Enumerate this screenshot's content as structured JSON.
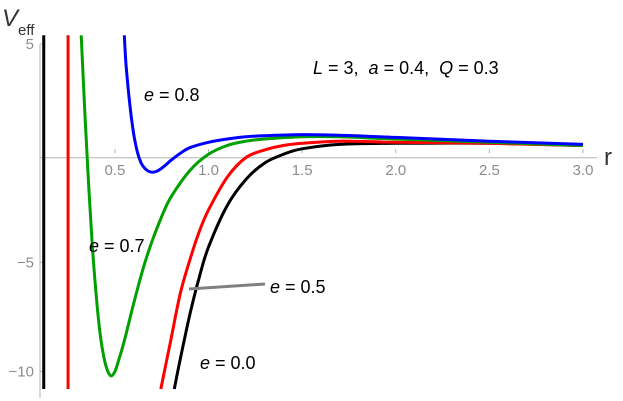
{
  "chart_data": {
    "type": "line",
    "title": "",
    "xlabel": "r",
    "ylabel_main": "V",
    "ylabel_sub": "eff",
    "xlim": [
      0.1,
      3.0
    ],
    "ylim": [
      -10.8,
      5.4
    ],
    "x_ticks": [
      {
        "value": 0.5,
        "label": "0.5"
      },
      {
        "value": 1.0,
        "label": "1.0"
      },
      {
        "value": 1.5,
        "label": "1.5"
      },
      {
        "value": 2.0,
        "label": "2.0"
      },
      {
        "value": 2.5,
        "label": "2.5"
      },
      {
        "value": 3.0,
        "label": "3.0"
      }
    ],
    "y_ticks": [
      {
        "value": 5,
        "label": "5"
      },
      {
        "value": -5,
        "label": "−5"
      },
      {
        "value": -10,
        "label": "−10"
      }
    ],
    "parameters": {
      "L": "3",
      "a": "0.4",
      "Q": "0.3"
    },
    "parameters_label": {
      "L_sym": "L",
      "L_val": " = 3,  ",
      "a_sym": "a",
      "a_val": " = 0.4,  ",
      "Q_sym": "Q",
      "Q_val": " = 0.3"
    },
    "series": [
      {
        "name": "e = 0.0",
        "sym": "e",
        "eq": " = 0.0",
        "color": "#000000",
        "asymptote_x": 0.12,
        "x": [
          0.817,
          0.85,
          0.9,
          0.95,
          1.0,
          1.1,
          1.2,
          1.3,
          1.4,
          1.5,
          1.7,
          2.0,
          2.5,
          3.0
        ],
        "y": [
          -10.8,
          -9.4,
          -7.4,
          -5.7,
          -4.3,
          -2.4,
          -1.2,
          -0.45,
          -0.05,
          0.2,
          0.4,
          0.45,
          0.45,
          0.35
        ]
      },
      {
        "name": "e = 0.5",
        "sym": "e",
        "eq": " = 0.5",
        "color": "#ff0000",
        "asymptote_x": 0.25,
        "x": [
          0.745,
          0.8,
          0.85,
          0.9,
          0.95,
          1.0,
          1.1,
          1.2,
          1.3,
          1.4,
          1.5,
          1.7,
          2.0,
          2.5,
          3.0
        ],
        "y": [
          -10.8,
          -8.5,
          -6.4,
          -4.9,
          -3.6,
          -2.6,
          -1.1,
          -0.2,
          0.15,
          0.35,
          0.45,
          0.55,
          0.5,
          0.45,
          0.35
        ]
      },
      {
        "name": "e = 0.7",
        "sym": "e",
        "eq": " = 0.7",
        "color": "#00a000",
        "x": [
          0.32,
          0.34,
          0.36,
          0.38,
          0.4,
          0.42,
          0.44,
          0.46,
          0.48,
          0.5,
          0.52,
          0.55,
          0.6,
          0.65,
          0.7,
          0.75,
          0.8,
          0.9,
          1.0,
          1.1,
          1.2,
          1.3,
          1.5,
          1.7,
          2.0,
          2.5,
          3.0
        ],
        "y": [
          5.4,
          1.8,
          -1.5,
          -4.3,
          -6.5,
          -8.2,
          -9.3,
          -9.95,
          -10.2,
          -10.0,
          -9.5,
          -8.6,
          -6.9,
          -5.3,
          -4.0,
          -2.9,
          -2.0,
          -0.8,
          -0.05,
          0.35,
          0.55,
          0.65,
          0.75,
          0.75,
          0.65,
          0.5,
          0.35
        ]
      },
      {
        "name": "e = 0.8",
        "sym": "e",
        "eq": " = 0.8",
        "color": "#0000ff",
        "x": [
          0.55,
          0.56,
          0.58,
          0.6,
          0.62,
          0.64,
          0.66,
          0.68,
          0.7,
          0.72,
          0.74,
          0.77,
          0.8,
          0.85,
          0.9,
          1.0,
          1.1,
          1.2,
          1.3,
          1.5,
          1.7,
          2.0,
          2.5,
          3.0
        ],
        "y": [
          5.4,
          4.0,
          2.2,
          0.9,
          0.05,
          -0.45,
          -0.7,
          -0.83,
          -0.87,
          -0.84,
          -0.75,
          -0.55,
          -0.32,
          0.0,
          0.25,
          0.5,
          0.65,
          0.75,
          0.8,
          0.85,
          0.82,
          0.72,
          0.55,
          0.4
        ]
      }
    ],
    "annotations": [
      {
        "series": "e = 0.8",
        "sym": "e",
        "eq": " = 0.8"
      },
      {
        "series": "e = 0.7",
        "sym": "e",
        "eq": " = 0.7"
      },
      {
        "series": "e = 0.5",
        "sym": "e",
        "eq": " = 0.5",
        "leader_line_color": "#808080"
      },
      {
        "series": "e = 0.0",
        "sym": "e",
        "eq": " = 0.0"
      }
    ]
  }
}
